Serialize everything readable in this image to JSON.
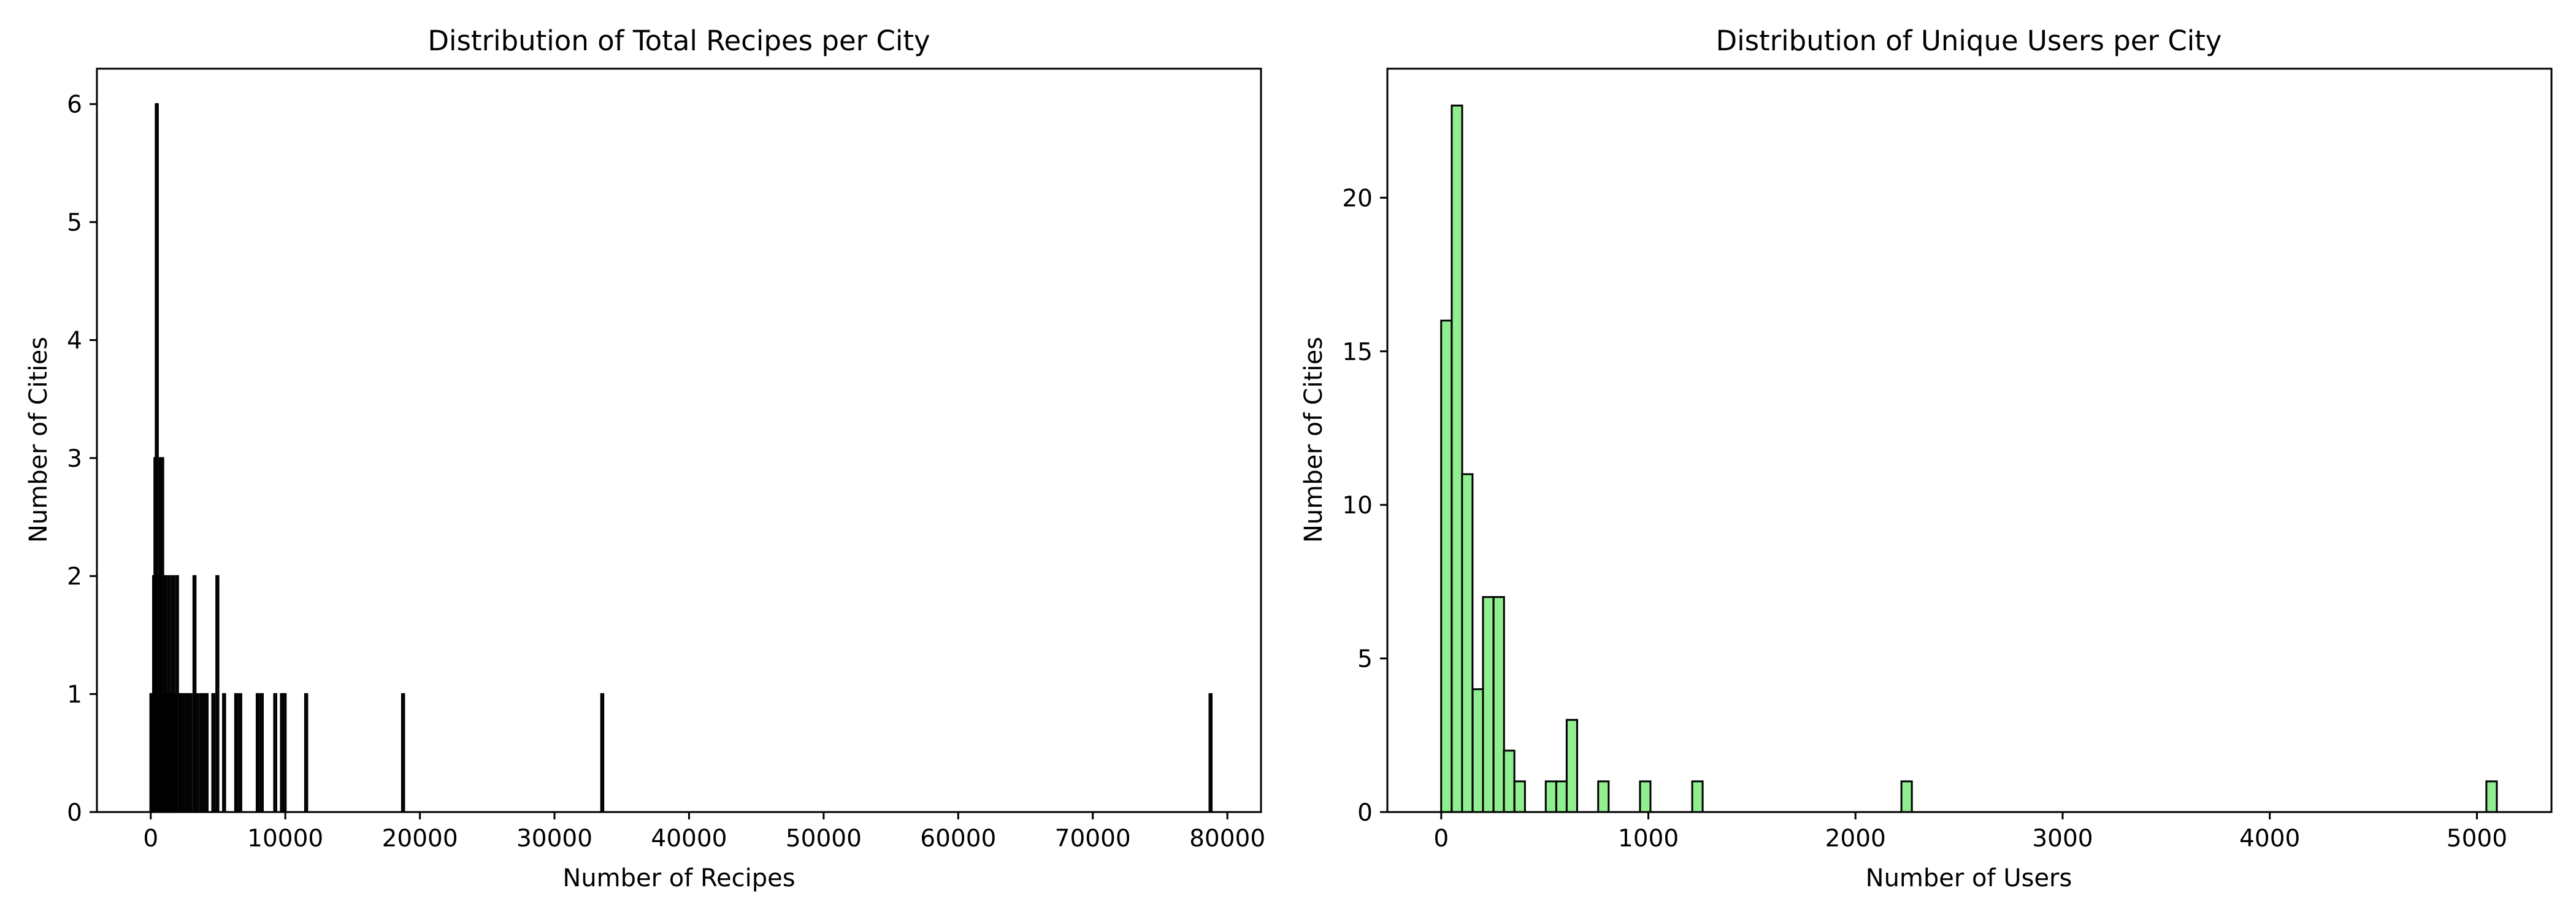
{
  "chart_data": [
    {
      "type": "bar",
      "title": "Distribution of Total Recipes per City",
      "xlabel": "Number of Recipes",
      "ylabel": "Number of Cities",
      "xlim": [
        -4000,
        82500
      ],
      "ylim": [
        0,
        6.3
      ],
      "xticks": [
        0,
        10000,
        20000,
        30000,
        40000,
        50000,
        60000,
        70000,
        80000
      ],
      "yticks": [
        0,
        1,
        2,
        3,
        4,
        5,
        6
      ],
      "bar_color": "#1f1f1f",
      "edge_color": "#000000",
      "bin_width": 100,
      "bars": [
        {
          "x": 50,
          "count": 1
        },
        {
          "x": 150,
          "count": 1
        },
        {
          "x": 250,
          "count": 2
        },
        {
          "x": 350,
          "count": 3
        },
        {
          "x": 450,
          "count": 6
        },
        {
          "x": 550,
          "count": 2
        },
        {
          "x": 650,
          "count": 1
        },
        {
          "x": 750,
          "count": 3
        },
        {
          "x": 850,
          "count": 3
        },
        {
          "x": 950,
          "count": 1
        },
        {
          "x": 1050,
          "count": 2
        },
        {
          "x": 1150,
          "count": 1
        },
        {
          "x": 1250,
          "count": 1
        },
        {
          "x": 1350,
          "count": 2
        },
        {
          "x": 1450,
          "count": 1
        },
        {
          "x": 1550,
          "count": 1
        },
        {
          "x": 1650,
          "count": 2
        },
        {
          "x": 1750,
          "count": 1
        },
        {
          "x": 1850,
          "count": 1
        },
        {
          "x": 1950,
          "count": 2
        },
        {
          "x": 2050,
          "count": 1
        },
        {
          "x": 2250,
          "count": 1
        },
        {
          "x": 2350,
          "count": 1
        },
        {
          "x": 2550,
          "count": 1
        },
        {
          "x": 2750,
          "count": 1
        },
        {
          "x": 2950,
          "count": 1
        },
        {
          "x": 3250,
          "count": 2
        },
        {
          "x": 3450,
          "count": 1
        },
        {
          "x": 3750,
          "count": 1
        },
        {
          "x": 3950,
          "count": 1
        },
        {
          "x": 4150,
          "count": 1
        },
        {
          "x": 4650,
          "count": 1
        },
        {
          "x": 4950,
          "count": 2
        },
        {
          "x": 5450,
          "count": 1
        },
        {
          "x": 6350,
          "count": 1
        },
        {
          "x": 6650,
          "count": 1
        },
        {
          "x": 7950,
          "count": 1
        },
        {
          "x": 8250,
          "count": 1
        },
        {
          "x": 9250,
          "count": 1
        },
        {
          "x": 9750,
          "count": 1
        },
        {
          "x": 9950,
          "count": 1
        },
        {
          "x": 11550,
          "count": 1
        },
        {
          "x": 18750,
          "count": 1
        },
        {
          "x": 33550,
          "count": 1
        },
        {
          "x": 78750,
          "count": 1
        }
      ]
    },
    {
      "type": "bar",
      "title": "Distribution of Unique Users per City",
      "xlabel": "Number of Users",
      "ylabel": "Number of Cities",
      "xlim": [
        -260,
        5360
      ],
      "ylim": [
        0,
        24.2
      ],
      "xticks": [
        0,
        1000,
        2000,
        3000,
        4000,
        5000
      ],
      "yticks": [
        0,
        5,
        10,
        15,
        20
      ],
      "bar_color": "#90ee90",
      "edge_color": "#000000",
      "bin_width": 50.5,
      "bars": [
        {
          "x": 25,
          "count": 16
        },
        {
          "x": 76,
          "count": 23
        },
        {
          "x": 126,
          "count": 11
        },
        {
          "x": 177,
          "count": 4
        },
        {
          "x": 227,
          "count": 7
        },
        {
          "x": 278,
          "count": 7
        },
        {
          "x": 328,
          "count": 2
        },
        {
          "x": 379,
          "count": 1
        },
        {
          "x": 530,
          "count": 1
        },
        {
          "x": 581,
          "count": 1
        },
        {
          "x": 631,
          "count": 3
        },
        {
          "x": 783,
          "count": 1
        },
        {
          "x": 985,
          "count": 1
        },
        {
          "x": 1237,
          "count": 1
        },
        {
          "x": 2247,
          "count": 1
        },
        {
          "x": 5071,
          "count": 1
        }
      ]
    }
  ]
}
